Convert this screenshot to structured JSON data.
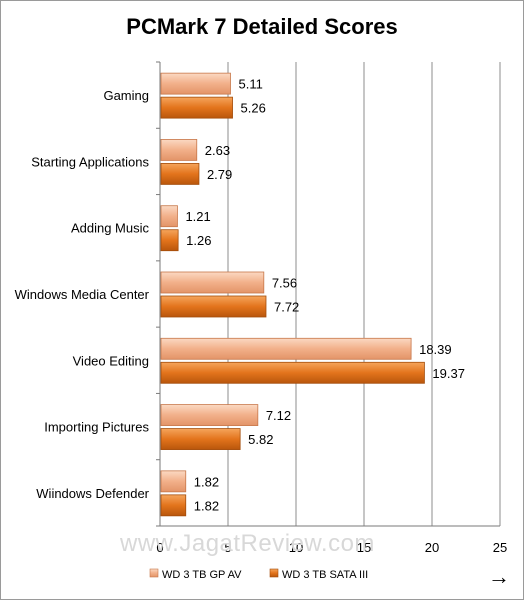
{
  "chart_data": {
    "type": "bar",
    "orientation": "horizontal",
    "title": "PCMark 7 Detailed Scores",
    "categories": [
      "Gaming",
      "Starting Applications",
      "Adding Music",
      "Windows Media Center",
      "Video Editing",
      "Importing Pictures",
      "Wiindows Defender"
    ],
    "series": [
      {
        "name": "WD 3 TB GP AV",
        "values": [
          5.11,
          2.63,
          1.21,
          7.56,
          18.39,
          7.12,
          1.82
        ],
        "color": "#f2b08a"
      },
      {
        "name": "WD 3 TB SATA III",
        "values": [
          5.26,
          2.79,
          1.26,
          7.72,
          19.37,
          5.82,
          1.82
        ],
        "color": "#e3741c"
      }
    ],
    "xlim": [
      0,
      25
    ],
    "xticks": [
      0,
      5,
      10,
      15,
      20,
      25
    ],
    "grid": true,
    "legend": "bottom"
  },
  "watermark": "www.JagatReview.com",
  "arrow": "→"
}
